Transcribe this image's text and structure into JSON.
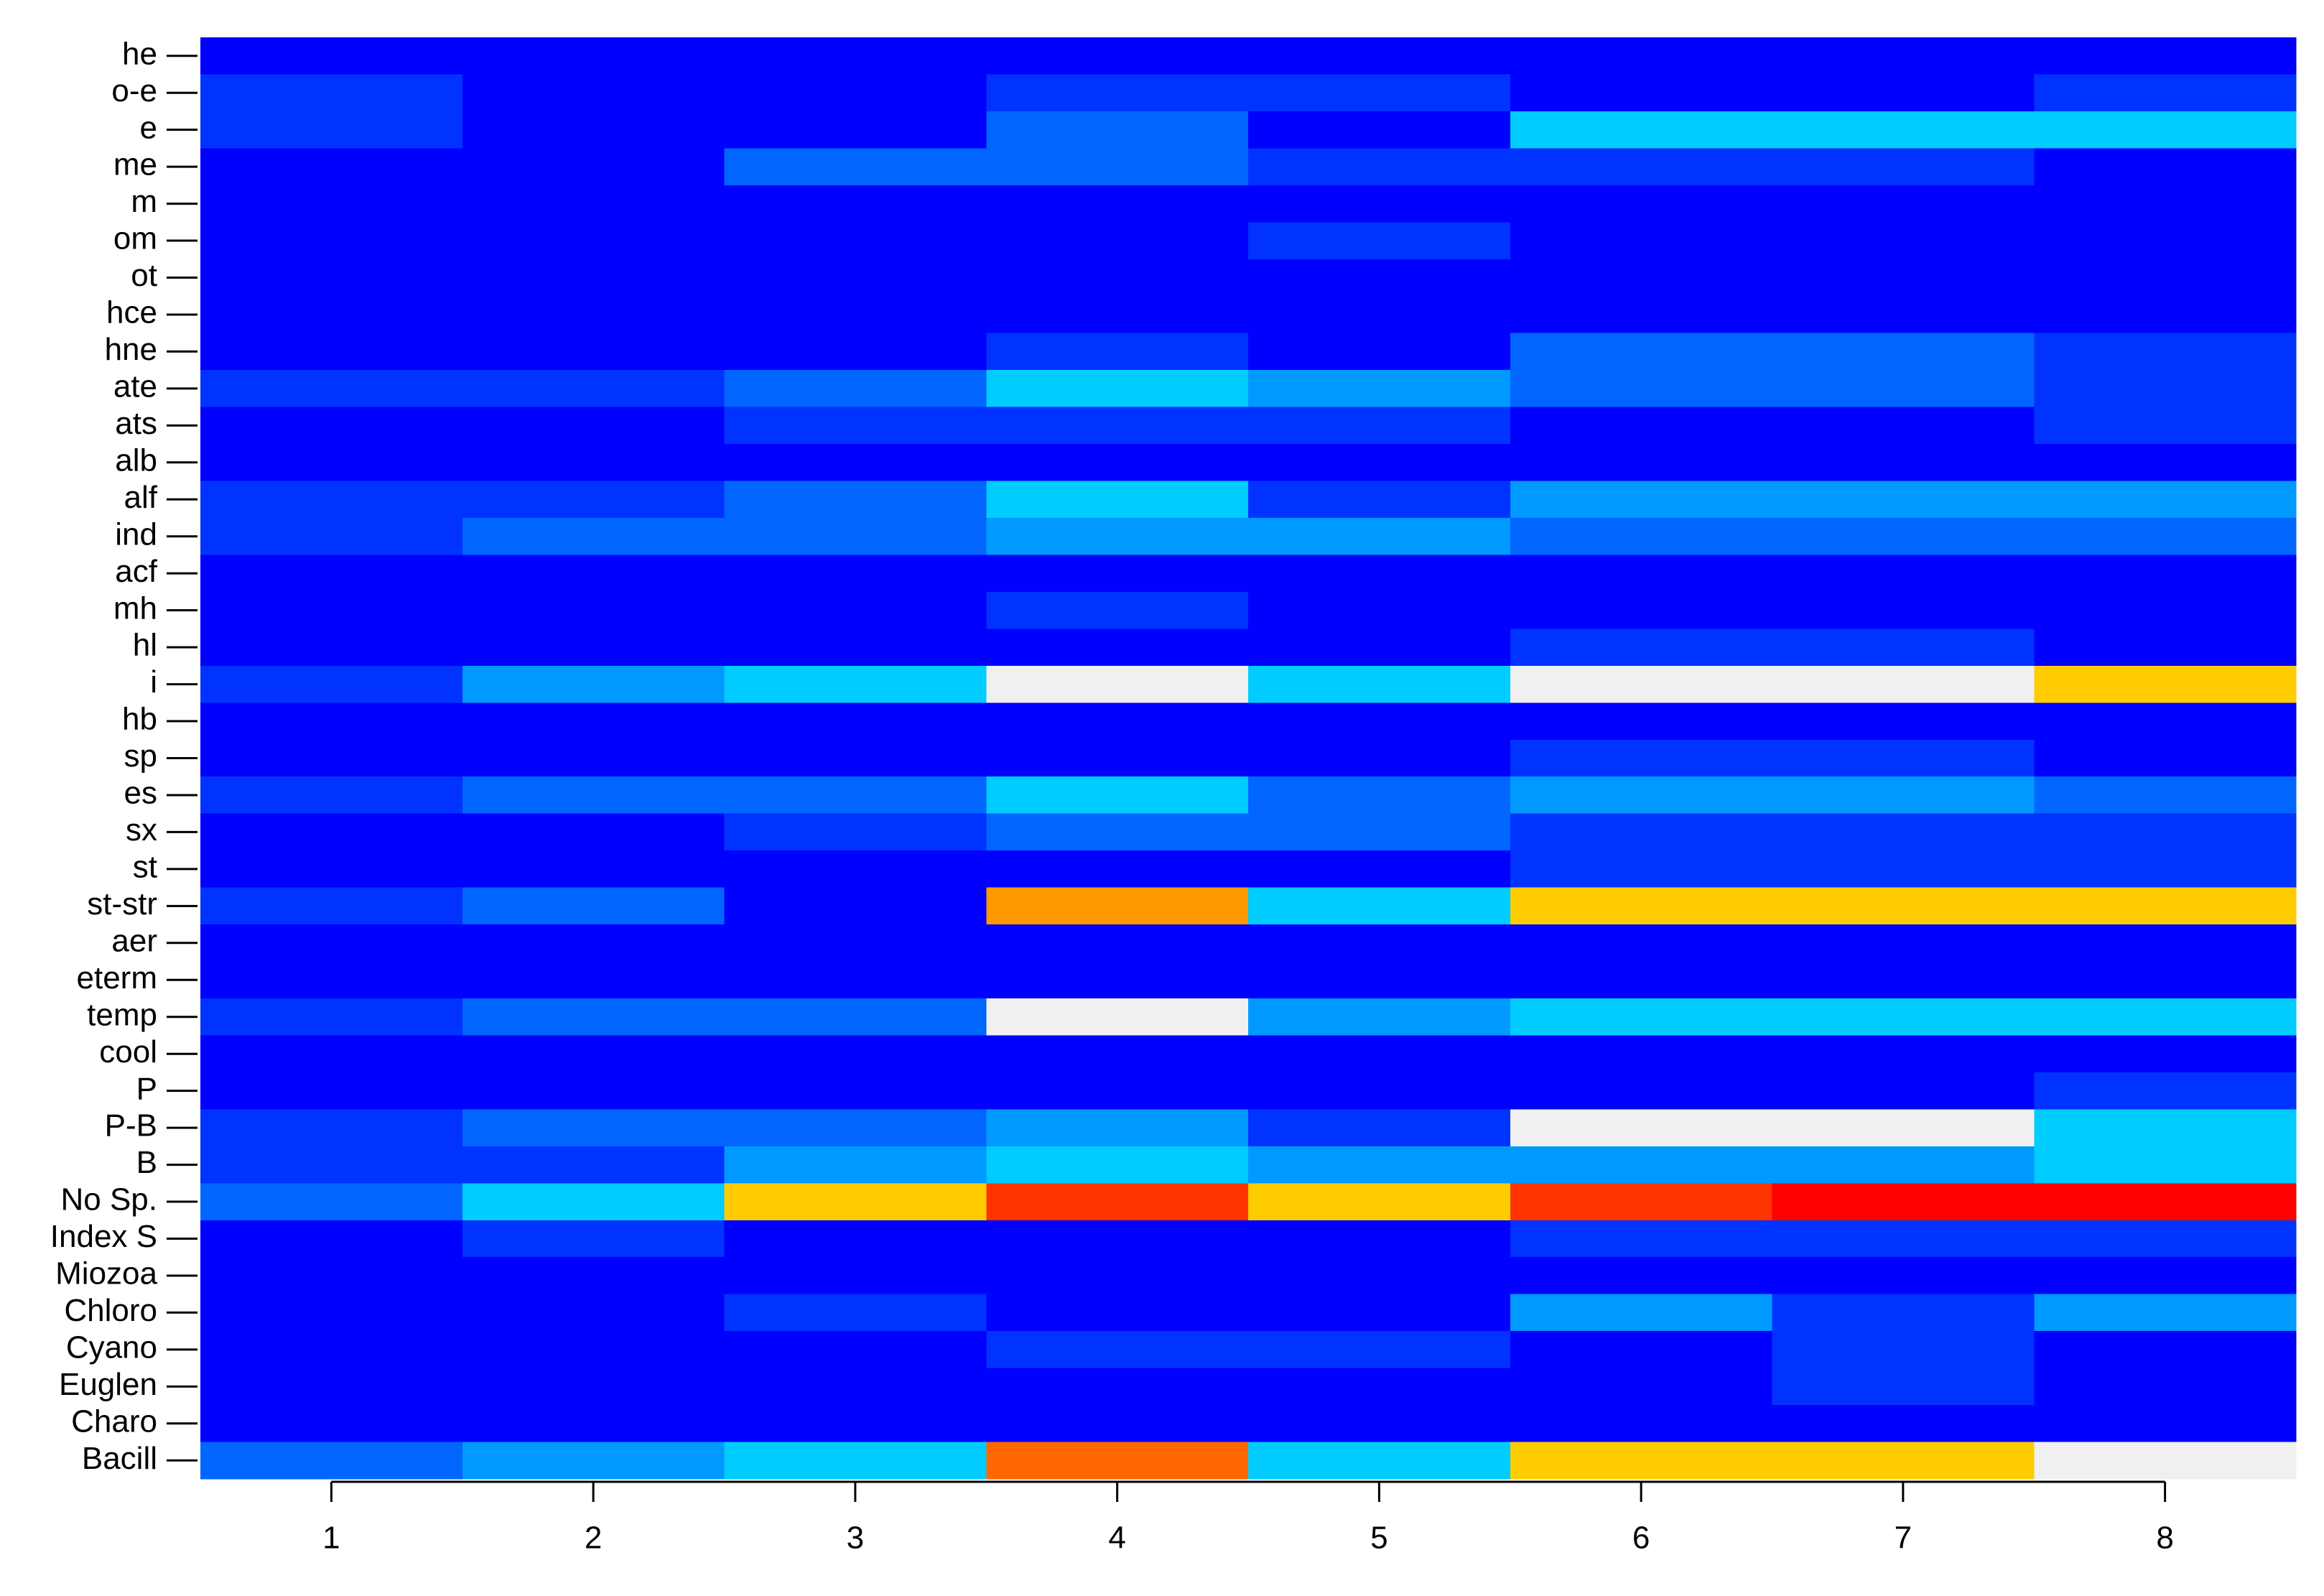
{
  "chart_data": {
    "type": "heatmap",
    "rows": [
      "he",
      "o-e",
      "e",
      "me",
      "m",
      "om",
      "ot",
      "hce",
      "hne",
      "ate",
      "ats",
      "alb",
      "alf",
      "ind",
      "acf",
      "mh",
      "hl",
      "i",
      "hb",
      "sp",
      "es",
      "sx",
      "st",
      "st-str",
      "aer",
      "eterm",
      "temp",
      "cool",
      "P",
      "P-B",
      "B",
      "No Sp.",
      "Index S",
      "Miozoa",
      "Chloro",
      "Cyano",
      "Euglen",
      "Charo",
      "Bacill"
    ],
    "xlim": [
      0.5,
      8.5
    ],
    "xticks": [
      1,
      2,
      3,
      4,
      5,
      6,
      7,
      8
    ],
    "palette": [
      "#0000ff",
      "#0033ff",
      "#0066ff",
      "#0099ff",
      "#00ccff",
      "#f0f0f0",
      "#ffcc00",
      "#ff9900",
      "#ff6600",
      "#ff3300",
      "#ff0000"
    ],
    "values": [
      [
        0,
        0,
        0,
        0,
        0,
        0,
        0,
        0
      ],
      [
        1,
        0,
        0,
        1,
        1,
        0,
        0,
        1
      ],
      [
        1,
        0,
        0,
        2,
        0,
        4,
        4,
        4
      ],
      [
        0,
        0,
        2,
        2,
        1,
        1,
        1,
        0
      ],
      [
        0,
        0,
        0,
        0,
        0,
        0,
        0,
        0
      ],
      [
        0,
        0,
        0,
        0,
        1,
        0,
        0,
        0
      ],
      [
        0,
        0,
        0,
        0,
        0,
        0,
        0,
        0
      ],
      [
        0,
        0,
        0,
        0,
        0,
        0,
        0,
        0
      ],
      [
        0,
        0,
        0,
        1,
        0,
        2,
        2,
        1
      ],
      [
        1,
        1,
        2,
        4,
        3,
        2,
        2,
        1
      ],
      [
        0,
        0,
        1,
        1,
        1,
        0,
        0,
        1
      ],
      [
        0,
        0,
        0,
        0,
        0,
        0,
        0,
        0
      ],
      [
        1,
        1,
        2,
        4,
        1,
        3,
        3,
        3
      ],
      [
        1,
        2,
        2,
        3,
        3,
        2,
        2,
        2
      ],
      [
        0,
        0,
        0,
        0,
        0,
        0,
        0,
        0
      ],
      [
        0,
        0,
        0,
        1,
        0,
        0,
        0,
        0
      ],
      [
        0,
        0,
        0,
        0,
        0,
        1,
        1,
        0
      ],
      [
        1,
        3,
        4,
        5,
        4,
        5,
        5,
        6
      ],
      [
        0,
        0,
        0,
        0,
        0,
        0,
        0,
        0
      ],
      [
        0,
        0,
        0,
        0,
        0,
        1,
        1,
        0
      ],
      [
        1,
        2,
        2,
        4,
        2,
        3,
        3,
        2
      ],
      [
        0,
        0,
        1,
        2,
        2,
        1,
        1,
        1
      ],
      [
        0,
        0,
        0,
        0,
        0,
        1,
        1,
        1
      ],
      [
        1,
        2,
        0,
        7,
        4,
        6,
        6,
        6
      ],
      [
        0,
        0,
        0,
        0,
        0,
        0,
        0,
        0
      ],
      [
        0,
        0,
        0,
        0,
        0,
        0,
        0,
        0
      ],
      [
        1,
        2,
        2,
        5,
        3,
        4,
        4,
        4
      ],
      [
        0,
        0,
        0,
        0,
        0,
        0,
        0,
        0
      ],
      [
        0,
        0,
        0,
        0,
        0,
        0,
        0,
        1
      ],
      [
        1,
        2,
        2,
        3,
        1,
        5,
        5,
        4
      ],
      [
        1,
        1,
        3,
        4,
        3,
        3,
        3,
        4
      ],
      [
        2,
        4,
        6,
        9,
        6,
        9,
        10,
        10
      ],
      [
        0,
        1,
        0,
        0,
        0,
        1,
        1,
        1
      ],
      [
        0,
        0,
        0,
        0,
        0,
        0,
        0,
        0
      ],
      [
        0,
        0,
        1,
        0,
        0,
        3,
        1,
        3
      ],
      [
        0,
        0,
        0,
        1,
        1,
        0,
        1,
        0
      ],
      [
        0,
        0,
        0,
        0,
        0,
        0,
        1,
        0
      ],
      [
        0,
        0,
        0,
        0,
        0,
        0,
        0,
        0
      ],
      [
        2,
        3,
        4,
        8,
        4,
        6,
        6,
        5
      ]
    ]
  }
}
